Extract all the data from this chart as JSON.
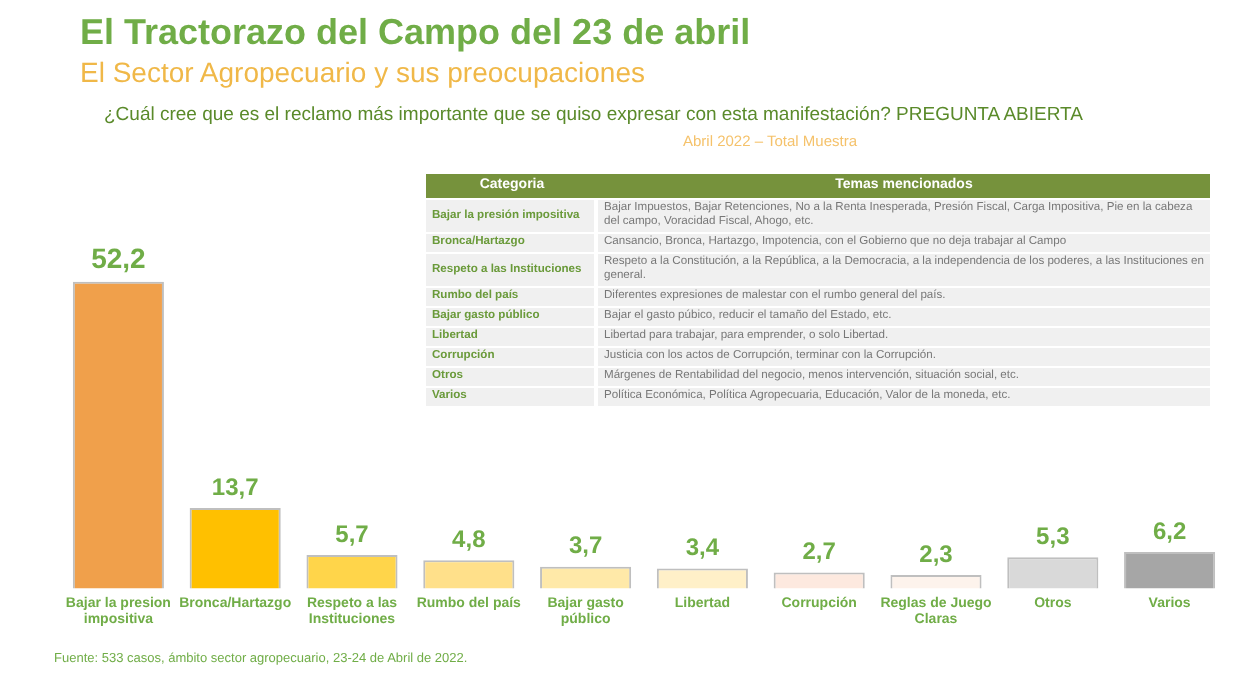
{
  "chart_data": {
    "type": "bar",
    "title": "El Tractorazo del Campo del 23 de abril",
    "subtitle": "El Sector Agropecuario y sus preocupaciones",
    "categories": [
      "Bajar la presion impositiva",
      "Bronca/Hartazgo",
      "Respeto a las Instituciones",
      "Rumbo del país",
      "Bajar gasto público",
      "Libertad",
      "Corrupción",
      "Reglas de Juego Claras",
      "Otros",
      "Varios"
    ],
    "values": [
      52.2,
      13.7,
      5.7,
      4.8,
      3.7,
      3.4,
      2.7,
      2.3,
      5.3,
      6.2
    ],
    "colors": [
      "#f0a04b",
      "#ffc000",
      "#ffd54a",
      "#ffe08a",
      "#ffe9a8",
      "#fff0c8",
      "#fde9df",
      "#fdf3ec",
      "#d9d9d9",
      "#a6a6a6"
    ],
    "value_labels": [
      "52,2",
      "13,7",
      "5,7",
      "4,8",
      "3,7",
      "3,4",
      "2,7",
      "2,3",
      "5,3",
      "6,2"
    ],
    "legend": false,
    "grid": false,
    "annotations": [
      "¿Cuál cree que es el reclamo más importante que se quiso expresar con esta manifestación? PREGUNTA ABIERTA",
      "Abril 2022 – Total Muestra",
      "Fuente: 533 casos, ámbito sector agropecuario, 23-24 de Abril de 2022.",
      "Categoria",
      "Temas mencionados",
      "Bajar la presión impositiva",
      "Bajar Impuestos, Bajar Retenciones, No a la Renta Inesperada, Presión Fiscal, Carga Impositiva, Pie en la cabeza del campo, Voracidad Fiscal, Ahogo, etc.",
      "Bronca/Hartazgo",
      "Cansancio, Bronca, Hartazgo, Impotencia, con el Gobierno que no deja trabajar al Campo",
      "Respeto a las Instituciones",
      "Respeto a la Constitución, a la República, a la Democracia, a la independencia de los poderes, a las Instituciones en general.",
      "Rumbo del país",
      "Diferentes expresiones de malestar con el rumbo general del país.",
      "Bajar gasto público",
      "Bajar el gasto púbico, reducir el tamaño del Estado, etc.",
      "Libertad",
      "Libertad para trabajar, para emprender, o solo Libertad.",
      "Corrupción",
      "Justicia con los actos de Corrupción, terminar con la Corrupción.",
      "Otros",
      "Márgenes de Rentabilidad del negocio, menos intervención, situación social, etc.",
      "Varios",
      "Política Económica, Política Agropecuaria, Educación, Valor de la moneda, etc."
    ]
  }
}
